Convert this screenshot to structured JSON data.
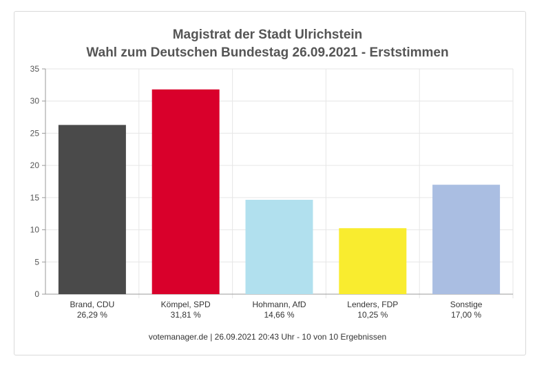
{
  "chart_data": {
    "type": "bar",
    "title": "Magistrat der Stadt Ulrichstein",
    "subtitle": "Wahl zum Deutschen Bundestag 26.09.2021  - Erststimmen",
    "categories": [
      "Brand, CDU",
      "Kömpel, SPD",
      "Hohmann, AfD",
      "Lenders, FDP",
      "Sonstige"
    ],
    "value_labels": [
      "26,29 %",
      "31,81 %",
      "14,66 %",
      "10,25 %",
      "17,00 %"
    ],
    "values": [
      26.29,
      31.81,
      14.66,
      10.25,
      17.0
    ],
    "colors": [
      "#4a4a4a",
      "#d9002b",
      "#b1e0ee",
      "#f9ec2f",
      "#aabee2"
    ],
    "ylim": [
      0,
      35
    ],
    "yticks": [
      0,
      5,
      10,
      15,
      20,
      25,
      30,
      35
    ],
    "grid": true,
    "xlabel": "",
    "ylabel": ""
  },
  "footer": "votemanager.de | 26.09.2021 20:43 Uhr - 10 von 10 Ergebnissen"
}
